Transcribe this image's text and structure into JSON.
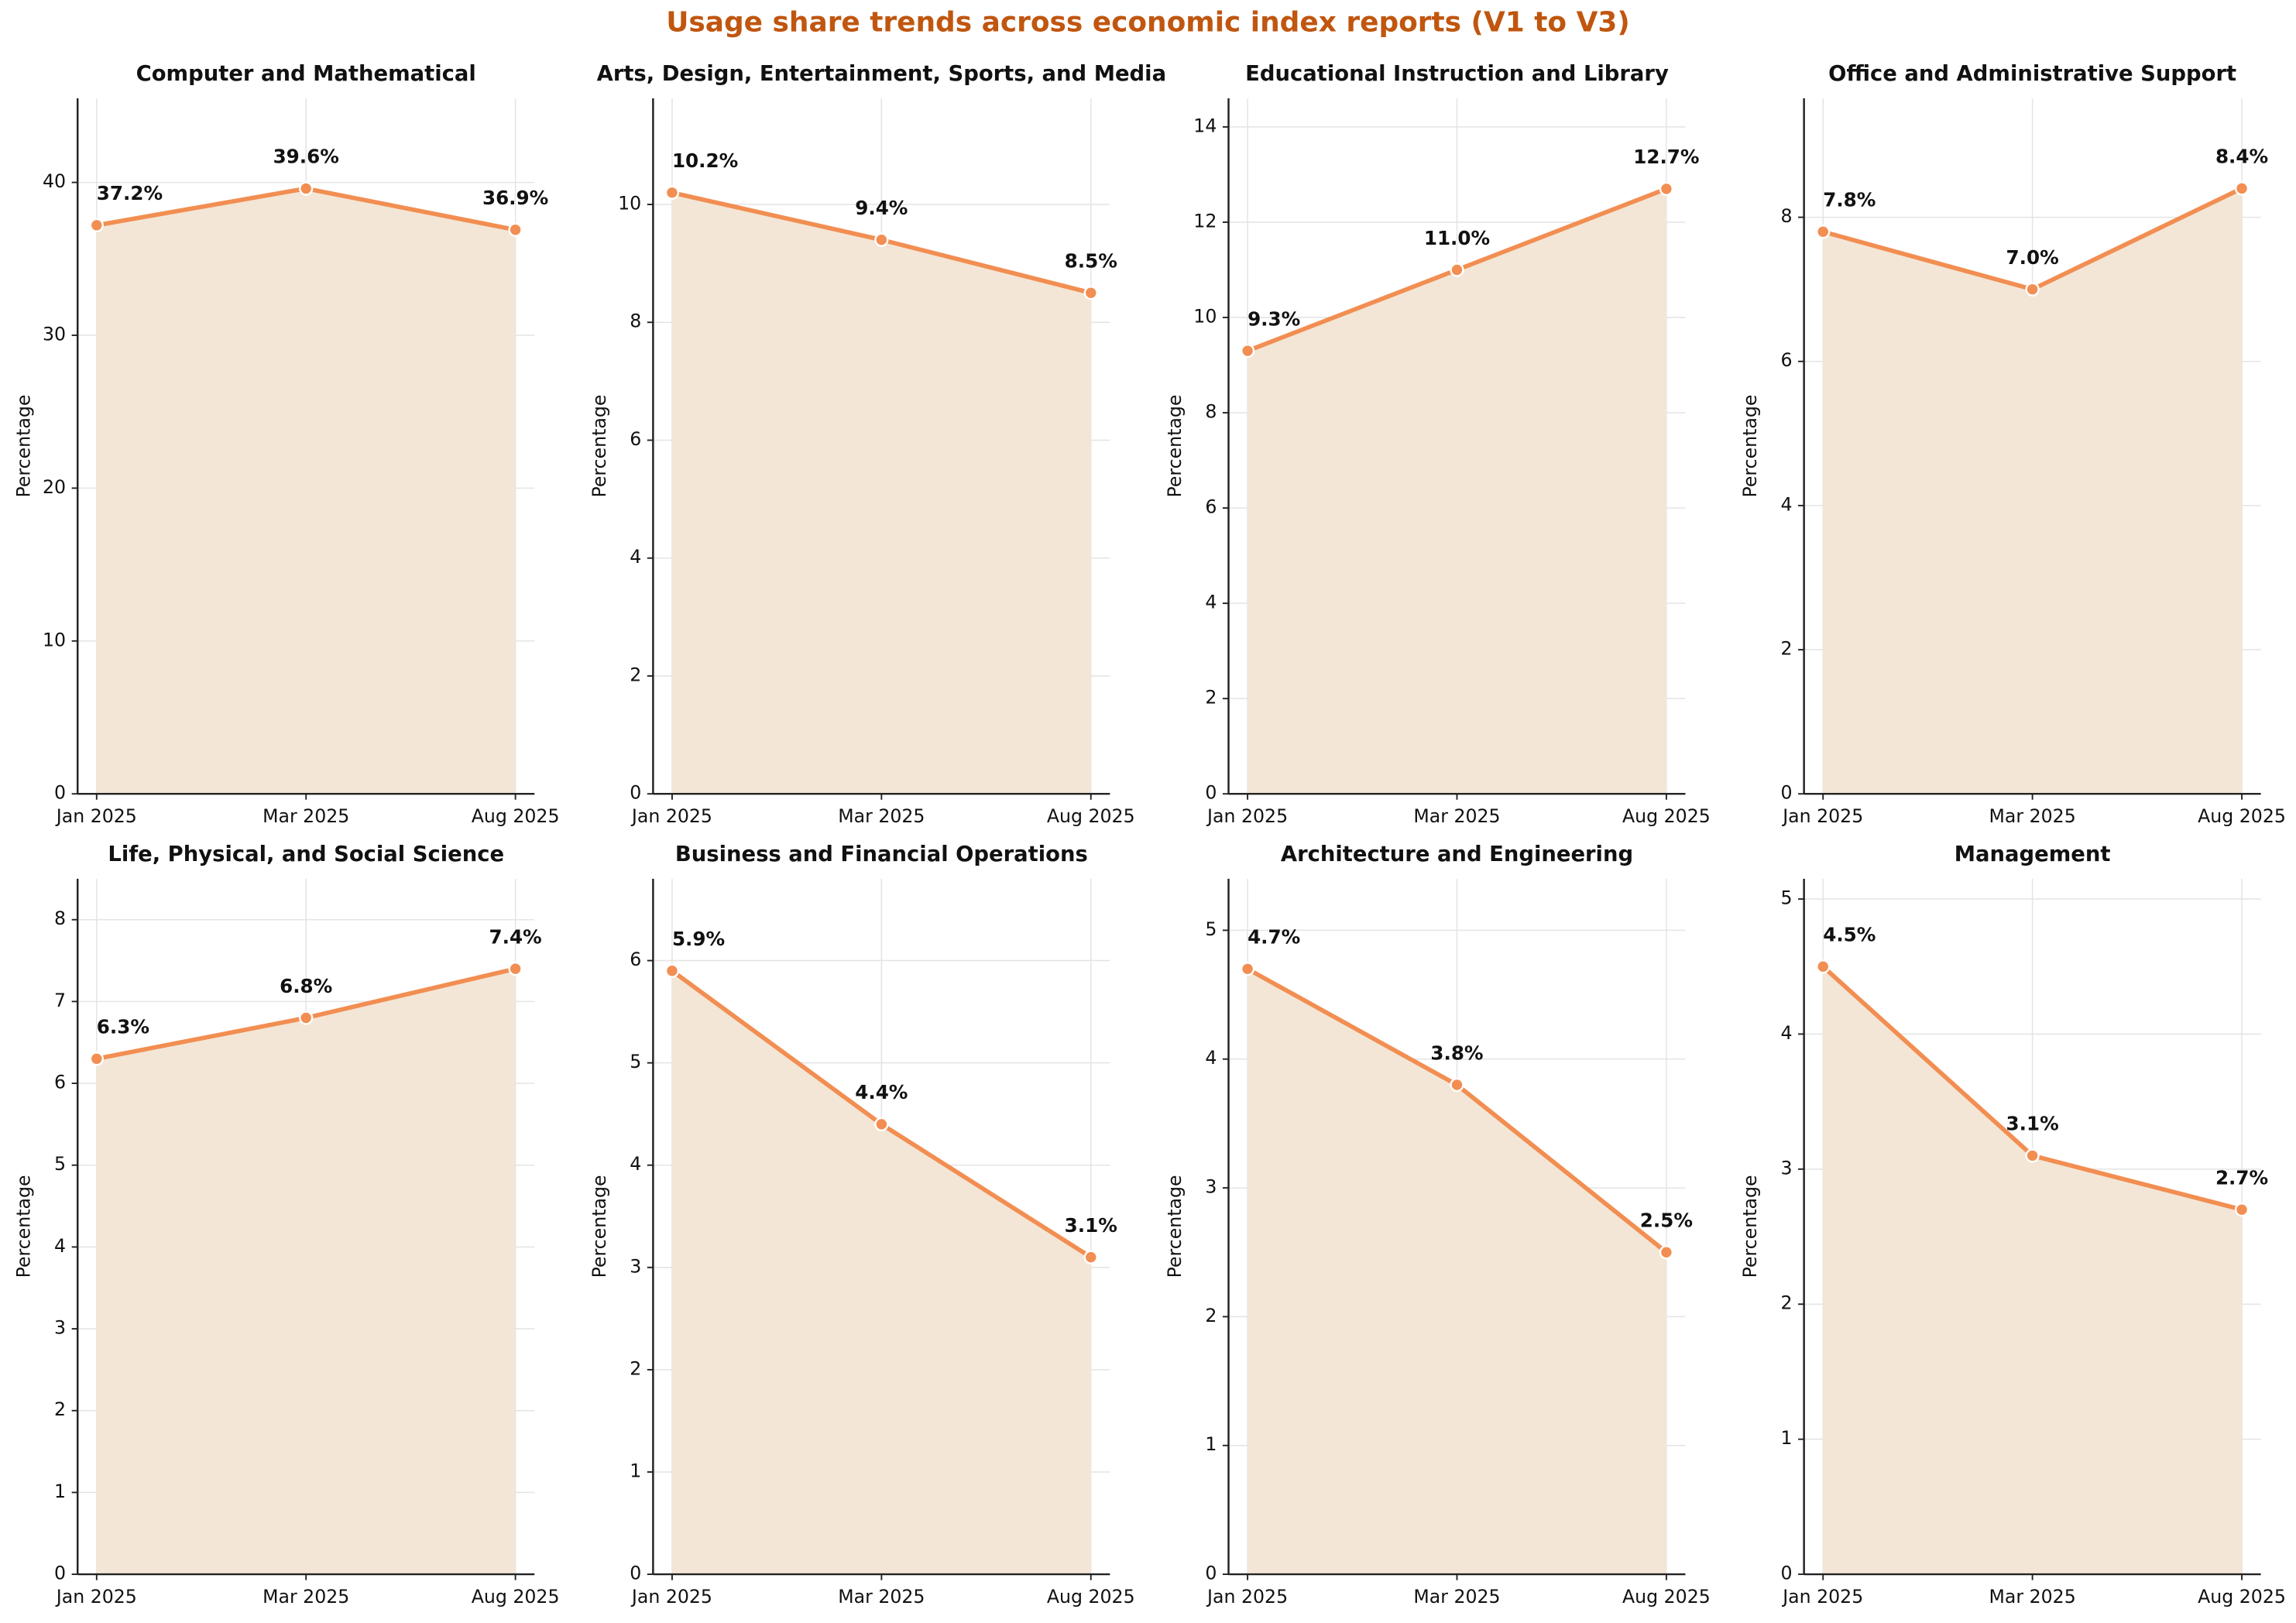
{
  "title": "Usage share trends across economic index reports (V1 to V3)",
  "chart_data": [
    {
      "type": "area",
      "title": "Computer and Mathematical",
      "y_label": "Percentage",
      "categories": [
        "Jan 2025",
        "Mar 2025",
        "Aug 2025"
      ],
      "values": [
        37.2,
        39.6,
        36.9
      ],
      "value_labels": [
        "37.2%",
        "39.6%",
        "36.9%"
      ],
      "color": "#f28e52",
      "fill_color": "#f3e6d6",
      "ylim": [
        0,
        45.5
      ],
      "yticks": [
        0,
        10,
        20,
        30,
        40
      ],
      "grid": true
    },
    {
      "type": "area",
      "title": "Arts, Design, Entertainment, Sports, and Media",
      "y_label": "Percentage",
      "categories": [
        "Jan 2025",
        "Mar 2025",
        "Aug 2025"
      ],
      "values": [
        10.2,
        9.4,
        8.5
      ],
      "value_labels": [
        "10.2%",
        "9.4%",
        "8.5%"
      ],
      "color": "#f28e52",
      "fill_color": "#f3e6d6",
      "ylim": [
        0,
        11.8
      ],
      "yticks": [
        0,
        2,
        4,
        6,
        8,
        10
      ],
      "grid": true
    },
    {
      "type": "area",
      "title": "Educational Instruction and Library",
      "y_label": "Percentage",
      "categories": [
        "Jan 2025",
        "Mar 2025",
        "Aug 2025"
      ],
      "values": [
        9.3,
        11.0,
        12.7
      ],
      "value_labels": [
        "9.3%",
        "11.0%",
        "12.7%"
      ],
      "color": "#f28e52",
      "fill_color": "#f3e6d6",
      "ylim": [
        0,
        14.6
      ],
      "yticks": [
        0,
        2,
        4,
        6,
        8,
        10,
        12,
        14
      ],
      "grid": true
    },
    {
      "type": "area",
      "title": "Office and Administrative Support",
      "y_label": "Percentage",
      "categories": [
        "Jan 2025",
        "Mar 2025",
        "Aug 2025"
      ],
      "values": [
        7.8,
        7.0,
        8.4
      ],
      "value_labels": [
        "7.8%",
        "7.0%",
        "8.4%"
      ],
      "color": "#f28e52",
      "fill_color": "#f3e6d6",
      "ylim": [
        0,
        9.65
      ],
      "yticks": [
        0,
        2,
        4,
        6,
        8
      ],
      "grid": true
    },
    {
      "type": "area",
      "title": "Life, Physical, and Social Science",
      "y_label": "Percentage",
      "categories": [
        "Jan 2025",
        "Mar 2025",
        "Aug 2025"
      ],
      "values": [
        6.3,
        6.8,
        7.4
      ],
      "value_labels": [
        "6.3%",
        "6.8%",
        "7.4%"
      ],
      "color": "#f28e52",
      "fill_color": "#f3e6d6",
      "ylim": [
        0,
        8.5
      ],
      "yticks": [
        0,
        1,
        2,
        3,
        4,
        5,
        6,
        7,
        8
      ],
      "grid": true
    },
    {
      "type": "area",
      "title": "Business and Financial Operations",
      "y_label": "Percentage",
      "categories": [
        "Jan 2025",
        "Mar 2025",
        "Aug 2025"
      ],
      "values": [
        5.9,
        4.4,
        3.1
      ],
      "value_labels": [
        "5.9%",
        "4.4%",
        "3.1%"
      ],
      "color": "#f28e52",
      "fill_color": "#f3e6d6",
      "ylim": [
        0,
        6.8
      ],
      "yticks": [
        0,
        1,
        2,
        3,
        4,
        5,
        6
      ],
      "grid": true
    },
    {
      "type": "area",
      "title": "Architecture and Engineering",
      "y_label": "Percentage",
      "categories": [
        "Jan 2025",
        "Mar 2025",
        "Aug 2025"
      ],
      "values": [
        4.7,
        3.8,
        2.5
      ],
      "value_labels": [
        "4.7%",
        "3.8%",
        "2.5%"
      ],
      "color": "#f28e52",
      "fill_color": "#f3e6d6",
      "ylim": [
        0,
        5.4
      ],
      "yticks": [
        0,
        1,
        2,
        3,
        4,
        5
      ],
      "grid": true
    },
    {
      "type": "area",
      "title": "Management",
      "y_label": "Percentage",
      "categories": [
        "Jan 2025",
        "Mar 2025",
        "Aug 2025"
      ],
      "values": [
        4.5,
        3.1,
        2.7
      ],
      "value_labels": [
        "4.5%",
        "3.1%",
        "2.7%"
      ],
      "color": "#f28e52",
      "fill_color": "#f3e6d6",
      "ylim": [
        0,
        5.15
      ],
      "yticks": [
        0,
        1,
        2,
        3,
        4,
        5
      ],
      "grid": true
    }
  ]
}
